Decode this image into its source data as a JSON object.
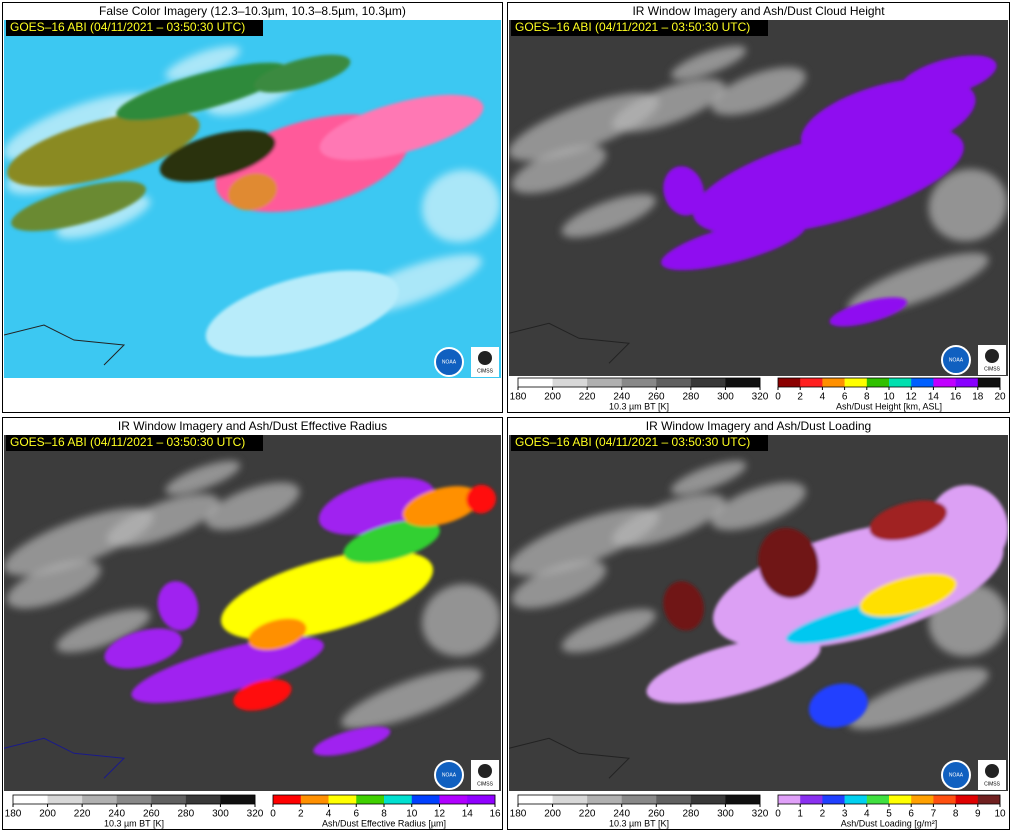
{
  "panels": [
    {
      "title": "False Color Imagery (12.3–10.3µm, 10.3–8.5µm, 10.3µm)",
      "timestamp": "GOES–16 ABI (04/11/2021 – 03:50:30 UTC)",
      "logos": [
        "NOAA",
        "CIMSS"
      ],
      "colorbars": []
    },
    {
      "title": "IR Window Imagery and Ash/Dust Cloud Height",
      "timestamp": "GOES–16 ABI (04/11/2021 – 03:50:30 UTC)",
      "logos": [
        "NOAA",
        "CIMSS"
      ],
      "colorbars": [
        {
          "label": "10.3 µm BT [K]",
          "lim": [
            180,
            320
          ],
          "ticks": [
            180,
            200,
            220,
            240,
            260,
            280,
            300,
            320
          ],
          "colors": [
            "#ffffff",
            "#d8d8d8",
            "#b0b0b0",
            "#888888",
            "#606060",
            "#383838",
            "#101010"
          ]
        },
        {
          "label": "Ash/Dust Height [km, ASL]",
          "lim": [
            0,
            20
          ],
          "ticks": [
            0,
            2,
            4,
            6,
            8,
            10,
            12,
            14,
            16,
            18,
            20
          ],
          "colors": [
            "#8b0000",
            "#ff2020",
            "#ff9000",
            "#ffff00",
            "#30c000",
            "#00e0b0",
            "#0060ff",
            "#c000ff",
            "#8800ff",
            "#101010"
          ]
        }
      ]
    },
    {
      "title": "IR Window Imagery and Ash/Dust Effective Radius",
      "timestamp": "GOES–16 ABI (04/11/2021 – 03:50:30 UTC)",
      "logos": [
        "NOAA",
        "CIMSS"
      ],
      "colorbars": [
        {
          "label": "10.3 µm BT [K]",
          "lim": [
            180,
            320
          ],
          "ticks": [
            180,
            200,
            220,
            240,
            260,
            280,
            300,
            320
          ],
          "colors": [
            "#ffffff",
            "#d8d8d8",
            "#b0b0b0",
            "#888888",
            "#606060",
            "#383838",
            "#101010"
          ]
        },
        {
          "label": "Ash/Dust Effective Radius [µm]",
          "lim": [
            0,
            16
          ],
          "ticks": [
            0,
            2,
            4,
            6,
            8,
            10,
            12,
            14,
            16
          ],
          "colors": [
            "#ff0000",
            "#ff9000",
            "#ffff00",
            "#40d000",
            "#00e0d0",
            "#0040ff",
            "#b000ff",
            "#9000ff"
          ]
        }
      ]
    },
    {
      "title": "IR Window Imagery and Ash/Dust Loading",
      "timestamp": "GOES–16 ABI (04/11/2021 – 03:50:30 UTC)",
      "logos": [
        "NOAA",
        "CIMSS"
      ],
      "colorbars": [
        {
          "label": "10.3 µm BT [K]",
          "lim": [
            180,
            320
          ],
          "ticks": [
            180,
            200,
            220,
            240,
            260,
            280,
            300,
            320
          ],
          "colors": [
            "#ffffff",
            "#d8d8d8",
            "#b0b0b0",
            "#888888",
            "#606060",
            "#383838",
            "#101010"
          ]
        },
        {
          "label": "Ash/Dust Loading [g/m²]",
          "lim": [
            0,
            10
          ],
          "ticks": [
            0,
            1,
            2,
            3,
            4,
            5,
            6,
            7,
            8,
            9,
            10
          ],
          "colors": [
            "#e0a0f8",
            "#8a30f0",
            "#2040ff",
            "#00d0f0",
            "#40e040",
            "#ffff00",
            "#ffa000",
            "#ff5010",
            "#e00000",
            "#702020"
          ]
        }
      ]
    }
  ]
}
